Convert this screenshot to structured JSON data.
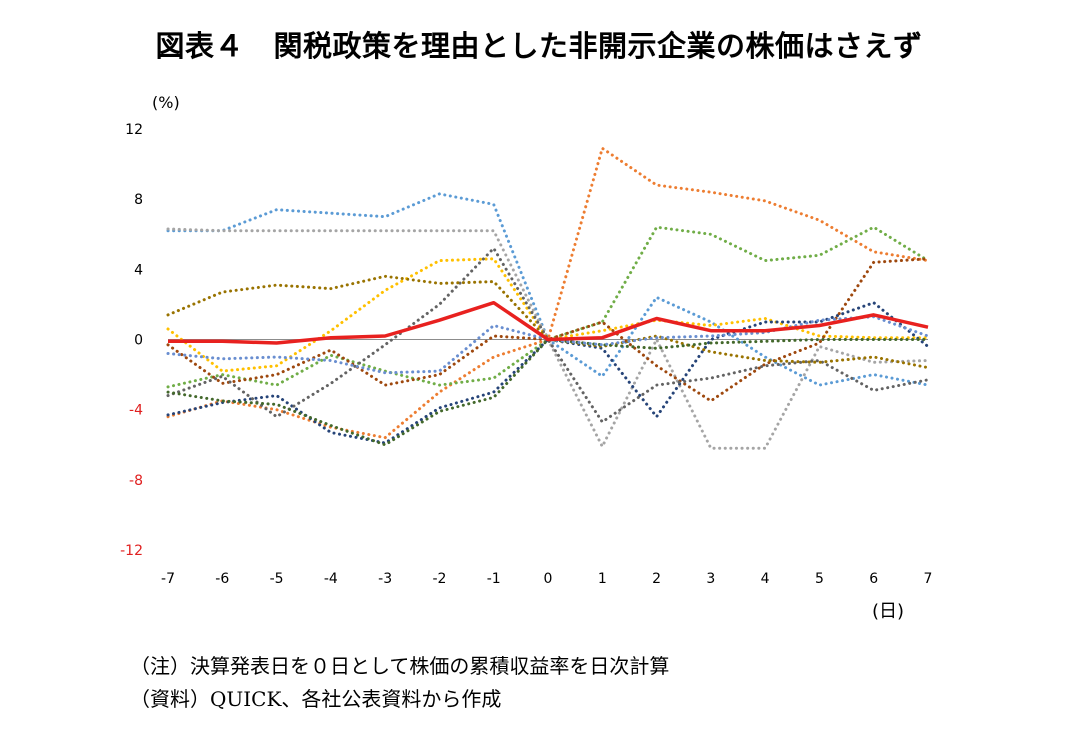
{
  "title": "図表４　関税政策を理由とした非開示企業の株価はさえず",
  "notes": {
    "note1": "（注）決算発表日を０日として株価の累積収益率を日次計算",
    "note2": "（資料）QUICK、各社公表資料から作成"
  },
  "chart_data": {
    "type": "line",
    "x": [
      -7,
      -6,
      -5,
      -4,
      -3,
      -2,
      -1,
      0,
      1,
      2,
      3,
      4,
      5,
      6,
      7
    ],
    "x_ticks": [
      "-7",
      "-6",
      "-5",
      "-4",
      "-3",
      "-2",
      "-1",
      "0",
      "1",
      "2",
      "3",
      "4",
      "5",
      "6",
      "7"
    ],
    "xlabel": "(日)",
    "ylabel": "(%)",
    "ylim": [
      -12,
      12
    ],
    "y_ticks": [
      12,
      8,
      4,
      0,
      -4,
      -8,
      -12
    ],
    "y_tick_labels": [
      "12",
      "8",
      "4",
      "0",
      "-4",
      "-8",
      "-12"
    ],
    "positive_tick_color": "#000000",
    "negative_tick_color": "#e02020",
    "zero_line": true,
    "grid": false,
    "legend": "none",
    "series": [
      {
        "role": "average",
        "color": "#e8211f",
        "style": "solid",
        "values": [
          -0.1,
          -0.1,
          -0.2,
          0.1,
          0.2,
          1.1,
          2.1,
          0.0,
          0.1,
          1.2,
          0.5,
          0.5,
          0.8,
          1.4,
          0.7
        ]
      },
      {
        "color": "#5b9bd5",
        "style": "dotted",
        "values": [
          6.2,
          6.2,
          7.4,
          7.2,
          7.0,
          8.3,
          7.7,
          0.0,
          -2.1,
          2.4,
          1.0,
          -1.0,
          -2.6,
          -2.0,
          -2.6
        ]
      },
      {
        "color": "#ed7d31",
        "style": "dotted",
        "values": [
          -4.4,
          -3.5,
          -4.0,
          -5.0,
          -5.6,
          -3.0,
          -1.0,
          0.0,
          10.9,
          8.8,
          8.4,
          7.9,
          6.8,
          5.0,
          4.5
        ]
      },
      {
        "color": "#a5a5a5",
        "style": "dotted",
        "values": [
          6.3,
          6.2,
          6.2,
          6.2,
          6.2,
          6.2,
          6.2,
          0.0,
          -6.1,
          0.0,
          -6.2,
          -6.2,
          -0.4,
          -1.3,
          -1.2
        ]
      },
      {
        "color": "#ffc000",
        "style": "dotted",
        "values": [
          0.6,
          -1.8,
          -1.5,
          0.5,
          2.8,
          4.5,
          4.6,
          0.0,
          0.5,
          1.1,
          0.8,
          1.2,
          0.2,
          0.1,
          0.1
        ]
      },
      {
        "color": "#70ad47",
        "style": "dotted",
        "values": [
          -2.7,
          -2.0,
          -2.6,
          -0.9,
          -1.8,
          -2.6,
          -2.2,
          0.0,
          1.0,
          6.4,
          6.0,
          4.5,
          4.8,
          6.4,
          4.5
        ]
      },
      {
        "color": "#264478",
        "style": "dotted",
        "values": [
          -4.3,
          -3.6,
          -3.2,
          -5.3,
          -5.9,
          -3.9,
          -3.0,
          0.0,
          -0.5,
          -4.4,
          0.0,
          1.0,
          1.0,
          2.1,
          -0.4
        ]
      },
      {
        "color": "#9e480e",
        "style": "dotted",
        "values": [
          -0.3,
          -2.5,
          -2.0,
          -0.6,
          -2.6,
          -2.0,
          0.2,
          0.0,
          1.0,
          -1.5,
          -3.5,
          -1.4,
          -0.2,
          4.4,
          4.6
        ]
      },
      {
        "color": "#636363",
        "style": "dotted",
        "values": [
          -3.2,
          -2.1,
          -4.4,
          -2.5,
          -0.3,
          2.0,
          5.2,
          0.0,
          -4.7,
          -2.6,
          -2.2,
          -1.5,
          -1.2,
          -2.9,
          -2.3
        ]
      },
      {
        "color": "#997300",
        "style": "dotted",
        "values": [
          1.4,
          2.7,
          3.1,
          2.9,
          3.6,
          3.2,
          3.3,
          0.0,
          -0.4,
          0.2,
          -0.7,
          -1.2,
          -1.3,
          -1.0,
          -1.6
        ]
      },
      {
        "color": "#43682b",
        "style": "dotted",
        "values": [
          -3.0,
          -3.5,
          -3.7,
          -4.9,
          -6.0,
          -4.1,
          -3.3,
          0.0,
          -0.3,
          -0.5,
          -0.2,
          -0.1,
          0.0,
          0.0,
          0.0
        ]
      },
      {
        "color": "#698ed0",
        "style": "dotted",
        "values": [
          -0.8,
          -1.1,
          -1.0,
          -1.2,
          -1.9,
          -1.8,
          0.8,
          0.0,
          -0.3,
          0.1,
          0.2,
          0.4,
          1.1,
          1.3,
          0.2
        ]
      }
    ]
  }
}
